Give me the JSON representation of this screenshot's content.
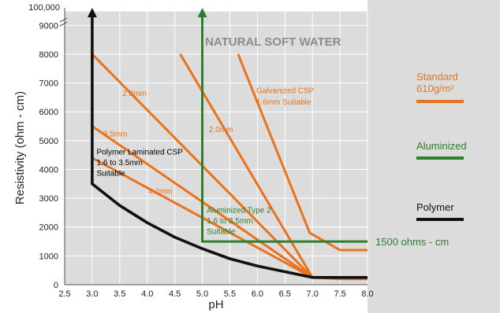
{
  "chart_data": {
    "type": "line",
    "xlabel": "pH",
    "ylabel": "Resistivity (ohm - cm)",
    "xlim": [
      2.5,
      8.0
    ],
    "ylim": [
      0,
      9500
    ],
    "grid": true,
    "x_ticks": [
      "2.5",
      "3.0",
      "3.5",
      "4.0",
      "4.5",
      "5.0",
      "5.5",
      "6.0",
      "6.5",
      "7.0",
      "7.5",
      "8.0"
    ],
    "y_ticks": [
      "0",
      "1000",
      "2000",
      "3000",
      "4000",
      "5000",
      "6000",
      "7000",
      "8000",
      "9000"
    ],
    "y_break_label": "100,000",
    "colors": {
      "standard": "#e8731c",
      "aluminized": "#2f7d2f",
      "polymer": "#111111"
    },
    "series": [
      {
        "name": "Standard 610g/m²",
        "key": "std-28",
        "label": "2.8mm",
        "x": [
          3.0,
          7.0
        ],
        "y": [
          8000,
          250
        ]
      },
      {
        "name": "Standard 610g/m²",
        "key": "std-35",
        "label": "3.5mm",
        "x": [
          3.0,
          7.0
        ],
        "y": [
          5500,
          250
        ]
      },
      {
        "name": "Standard 610g/m²",
        "key": "std-42",
        "label": "4.2mm",
        "x": [
          3.0,
          7.0
        ],
        "y": [
          4400,
          250
        ]
      },
      {
        "name": "Standard 610g/m²",
        "key": "std-20",
        "label": "2.0mm",
        "x": [
          4.6,
          7.0
        ],
        "y": [
          8000,
          250
        ]
      },
      {
        "name": "Standard 610g/m²",
        "key": "std-galv",
        "label": "Galvanized CSP\n1.6mm Suitable",
        "x": [
          5.65,
          6.95,
          7.5,
          8.0
        ],
        "y": [
          8000,
          1800,
          1200,
          1200
        ]
      },
      {
        "name": "Standard 610g/m²",
        "key": "std-tail",
        "label": "",
        "x": [
          7.0,
          7.5,
          8.0
        ],
        "y": [
          250,
          200,
          200
        ]
      },
      {
        "name": "Aluminized",
        "key": "alu",
        "label": "",
        "x": [
          5.0,
          5.0,
          8.0
        ],
        "y": [
          9500,
          1500,
          1500
        ]
      },
      {
        "name": "Polymer",
        "key": "poly",
        "label": "",
        "x": [
          3.0,
          3.0,
          3.5,
          4.0,
          4.5,
          5.0,
          5.5,
          6.0,
          6.5,
          7.0,
          8.0
        ],
        "y": [
          9500,
          3500,
          2750,
          2150,
          1650,
          1250,
          900,
          650,
          450,
          250,
          250
        ]
      }
    ],
    "annotations": [
      {
        "text": "NATURAL SOFT WATER",
        "x": 5.05,
        "y": 8300,
        "color": "gray",
        "style": "title"
      },
      {
        "text": "2.8mm",
        "x": 3.55,
        "y": 6550,
        "color": "orange"
      },
      {
        "text": "3.5mm",
        "x": 3.2,
        "y": 5150,
        "color": "orange"
      },
      {
        "text": "4.2mm",
        "x": 4.02,
        "y": 3150,
        "color": "orange"
      },
      {
        "text": "2.0mm",
        "x": 5.12,
        "y": 5300,
        "color": "orange"
      },
      {
        "text": "Galvanized CSP",
        "x": 5.98,
        "y": 6650,
        "color": "orange"
      },
      {
        "text": "1.6mm Suitable",
        "x": 5.98,
        "y": 6250,
        "color": "orange"
      },
      {
        "text": "Polymer Laminated CSP",
        "x": 3.08,
        "y": 4520,
        "color": "black"
      },
      {
        "text": "1.6 to 3.5mm",
        "x": 3.08,
        "y": 4150,
        "color": "black"
      },
      {
        "text": "Suitable",
        "x": 3.08,
        "y": 3780,
        "color": "black"
      },
      {
        "text": "Aluminized Type 2",
        "x": 5.08,
        "y": 2500,
        "color": "green"
      },
      {
        "text": "1.6 to 3.5mm",
        "x": 5.08,
        "y": 2130,
        "color": "green"
      },
      {
        "text": "Suitable",
        "x": 5.08,
        "y": 1760,
        "color": "green"
      }
    ],
    "callout": {
      "text": "1500 ohms - cm"
    },
    "legend": {
      "placement": "right",
      "items": [
        {
          "line1": "Standard",
          "line2": "610g/m²",
          "color": "#e8731c"
        },
        {
          "line1": "Aluminized",
          "line2": "",
          "color": "#2f7d2f"
        },
        {
          "line1": "Polymer",
          "line2": "",
          "color": "#111111"
        }
      ]
    }
  }
}
